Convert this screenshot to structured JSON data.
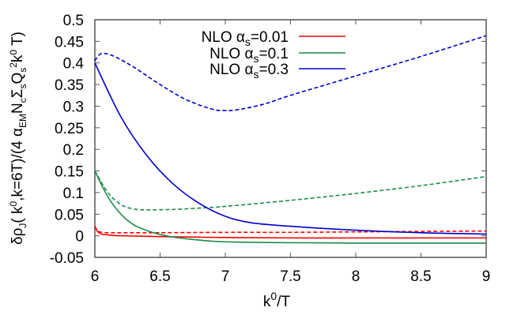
{
  "chart_data": {
    "type": "line",
    "title": "",
    "xlabel": "k0/T",
    "ylabel": "δρJ( k0,k=6T)/(4 αEM Nc Σs Qs2 k0 T)",
    "xlim": [
      6,
      9
    ],
    "ylim": [
      -0.05,
      0.5
    ],
    "xticks": [
      "6",
      "6.5",
      "7",
      "7.5",
      "8",
      "8.5",
      "9"
    ],
    "yticks": [
      "-0.05",
      "0",
      "0.05",
      "0.1",
      "0.15",
      "0.2",
      "0.25",
      "0.3",
      "0.35",
      "0.4",
      "0.45",
      "0.5"
    ],
    "grid": false,
    "legend_position": "top-center",
    "legend": [
      {
        "label": "NLO αs=0.01",
        "color": "#ff0000"
      },
      {
        "label": "NLO αs=0.1",
        "color": "#1f8a4c"
      },
      {
        "label": "NLO αs=0.3",
        "color": "#0000cc"
      }
    ],
    "series": [
      {
        "name": "NLO αs=0.01 (solid)",
        "color": "#ff0000",
        "style": "solid",
        "x": [
          6.0,
          6.02,
          6.05,
          6.1,
          6.2,
          6.5,
          7.0,
          7.5,
          8.0,
          8.5,
          9.0
        ],
        "y": [
          0.022,
          0.01,
          0.004,
          0.002,
          0.0,
          -0.002,
          -0.004,
          -0.005,
          -0.005,
          -0.005,
          -0.005
        ]
      },
      {
        "name": "NLO αs=0.01 (dashed)",
        "color": "#ff0000",
        "style": "dashed",
        "x": [
          6.0,
          6.02,
          6.05,
          6.1,
          6.2,
          6.5,
          7.0,
          7.5,
          8.0,
          8.5,
          9.0
        ],
        "y": [
          0.022,
          0.012,
          0.008,
          0.007,
          0.007,
          0.007,
          0.008,
          0.008,
          0.009,
          0.01,
          0.011
        ]
      },
      {
        "name": "NLO αs=0.1 (solid)",
        "color": "#1f8a4c",
        "style": "solid",
        "x": [
          6.0,
          6.1,
          6.2,
          6.3,
          6.4,
          6.5,
          6.6,
          6.8,
          7.0,
          7.5,
          8.0,
          8.5,
          9.0
        ],
        "y": [
          0.15,
          0.09,
          0.05,
          0.025,
          0.012,
          0.003,
          -0.003,
          -0.01,
          -0.014,
          -0.016,
          -0.017,
          -0.017,
          -0.017
        ]
      },
      {
        "name": "NLO αs=0.1 (dashed)",
        "color": "#1f8a4c",
        "style": "dashed",
        "x": [
          6.0,
          6.1,
          6.2,
          6.3,
          6.4,
          6.6,
          6.8,
          7.0,
          7.5,
          8.0,
          8.5,
          9.0
        ],
        "y": [
          0.15,
          0.1,
          0.072,
          0.062,
          0.06,
          0.061,
          0.064,
          0.068,
          0.082,
          0.098,
          0.116,
          0.137
        ]
      },
      {
        "name": "NLO αs=0.3 (solid)",
        "color": "#0000cc",
        "style": "solid",
        "x": [
          6.0,
          6.2,
          6.4,
          6.6,
          6.8,
          7.0,
          7.2,
          7.5,
          8.0,
          8.5,
          9.0
        ],
        "y": [
          0.4,
          0.275,
          0.185,
          0.12,
          0.075,
          0.045,
          0.03,
          0.022,
          0.013,
          0.007,
          0.004
        ]
      },
      {
        "name": "NLO αs=0.3 (dashed)",
        "color": "#0000cc",
        "style": "dashed",
        "x": [
          6.0,
          6.03,
          6.07,
          6.15,
          6.3,
          6.5,
          6.7,
          6.9,
          7.0,
          7.1,
          7.3,
          7.5,
          8.0,
          8.5,
          9.0
        ],
        "y": [
          0.405,
          0.418,
          0.422,
          0.415,
          0.39,
          0.35,
          0.315,
          0.293,
          0.29,
          0.292,
          0.305,
          0.325,
          0.37,
          0.415,
          0.463
        ]
      }
    ]
  }
}
